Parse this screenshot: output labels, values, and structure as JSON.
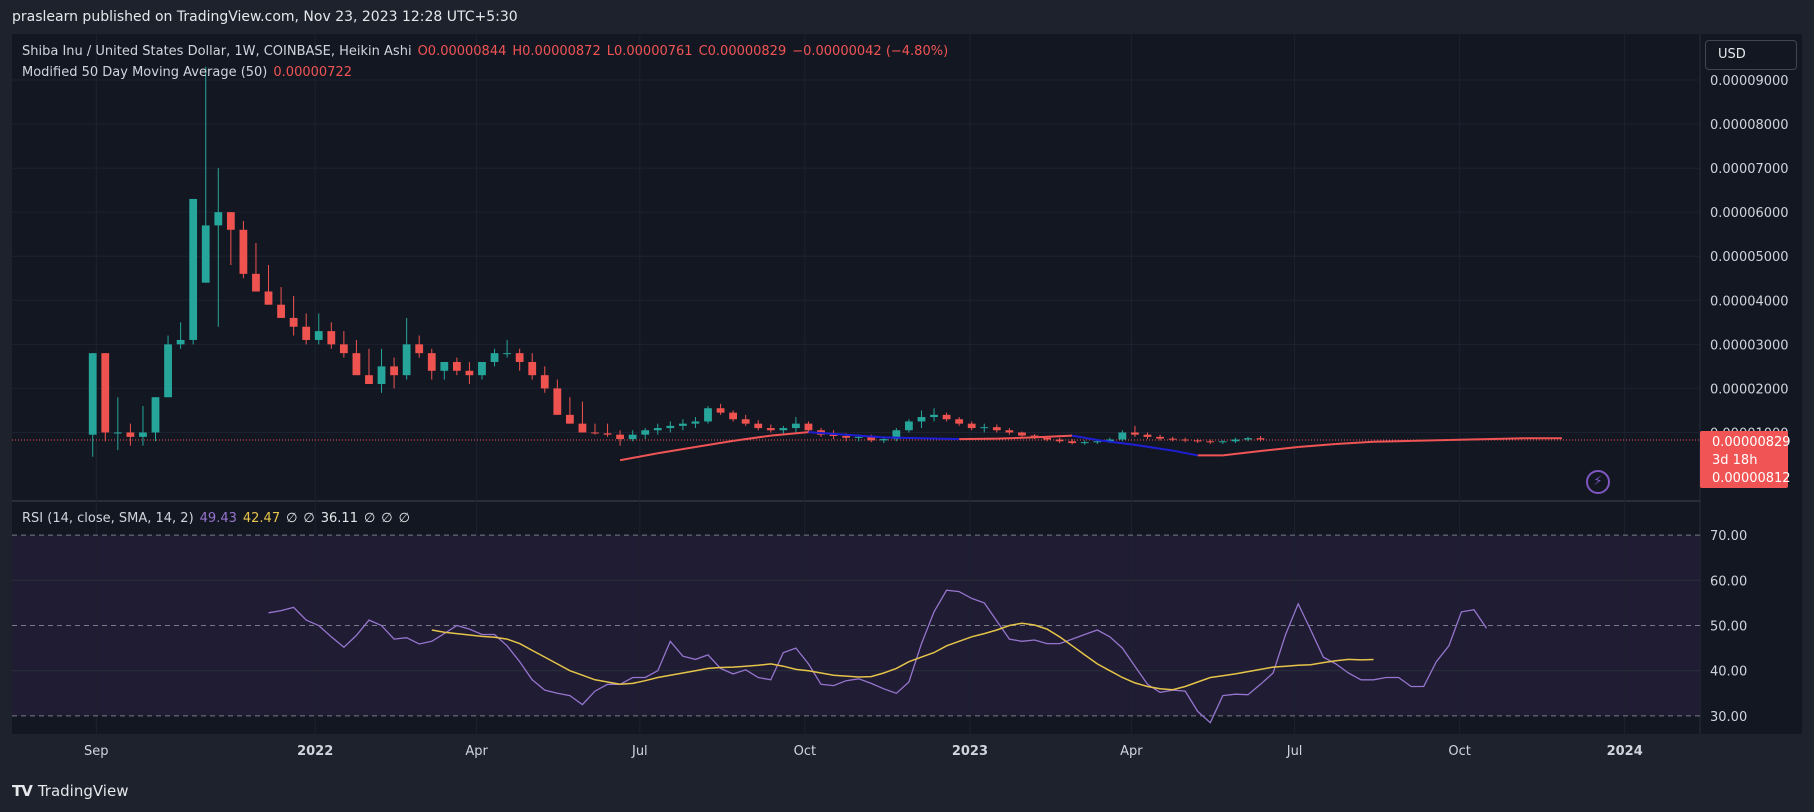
{
  "header": {
    "published_line": "praslearn published on TradingView.com, Nov 23, 2023 12:28 UTC+5:30"
  },
  "legend": {
    "symbol": "Shiba Inu / United States Dollar, 1W, COINBASE, Heikin Ashi",
    "open": "O0.00000844",
    "high": "H0.00000872",
    "low": "L0.00000761",
    "close": "C0.00000829",
    "change": "−0.00000042 (−4.80%)",
    "ma_label": "Modified 50 Day Moving Average (50)",
    "ma_value": "0.00000722",
    "rsi_label": "RSI (14, close, SMA, 14, 2)",
    "rsi_value": "49.43",
    "rsi_ma_value": "42.47",
    "empty_1": "∅",
    "empty_2": "∅",
    "rsi_extra": "36.11",
    "empty_3": "∅",
    "empty_4": "∅",
    "empty_5": "∅"
  },
  "toolbar": {
    "currency": "USD"
  },
  "icons": {
    "flash": "flash-icon",
    "logo": "tradingview-logo-icon"
  },
  "footer": {
    "logo_mark": "TV",
    "brand": "TradingView"
  },
  "colors": {
    "background": "#131722",
    "up": "#26a69a",
    "down": "#ef5350",
    "ma_down": "#f05454",
    "ma_up": "#1e1ed4",
    "rsi": "#9575cd",
    "rsi_ma": "#e6c44a",
    "price_tag": "#f05454"
  },
  "chart_data": [
    {
      "type": "candlestick",
      "title": "Shiba Inu / United States Dollar, 1W, COINBASE, Heikin Ashi",
      "ylim": [
        0,
        9e-05
      ],
      "y_ticks": [
        "0.00001000",
        "0.00002000",
        "0.00003000",
        "0.00004000",
        "0.00005000",
        "0.00006000",
        "0.00007000",
        "0.00008000",
        "0.00009000"
      ],
      "y_tick_values": [
        1e-05,
        2e-05,
        3e-05,
        4e-05,
        5e-05,
        6e-05,
        7e-05,
        8e-05,
        9e-05
      ],
      "x_ticks": [
        "Sep",
        "2022",
        "Apr",
        "Jul",
        "Oct",
        "2023",
        "Apr",
        "Jul",
        "Oct",
        "2024"
      ],
      "x_tick_dates": [
        "2021-09-01",
        "2022-01-01",
        "2022-04-01",
        "2022-07-01",
        "2022-10-01",
        "2023-01-01",
        "2023-04-01",
        "2023-07-01",
        "2023-10-01",
        "2024-01-01"
      ],
      "x_range": [
        "2021-07-16",
        "2024-02-12"
      ],
      "first_candle": "2021-08-30",
      "interval_days": 7,
      "price_line": 8.29e-06,
      "price_labels": [
        "0.00000829",
        "3d 18h",
        "0.00000812"
      ],
      "candles_ohlc_1e-5": [
        [
          0.95,
          2.8,
          0.45,
          2.8
        ],
        [
          2.8,
          2.8,
          0.8,
          1.0
        ],
        [
          1.0,
          1.8,
          0.6,
          1.0
        ],
        [
          1.0,
          1.2,
          0.7,
          0.9
        ],
        [
          0.9,
          1.6,
          0.7,
          1.0
        ],
        [
          1.0,
          1.8,
          0.8,
          1.8
        ],
        [
          1.8,
          3.2,
          1.8,
          3.0
        ],
        [
          3.0,
          3.5,
          2.9,
          3.1
        ],
        [
          3.1,
          6.3,
          3.0,
          6.3
        ],
        [
          4.4,
          9.3,
          4.4,
          5.7
        ],
        [
          5.7,
          7.0,
          3.4,
          6.0
        ],
        [
          6.0,
          6.0,
          4.8,
          5.6
        ],
        [
          5.6,
          5.8,
          4.5,
          4.6
        ],
        [
          4.6,
          5.3,
          4.3,
          4.2
        ],
        [
          4.2,
          4.8,
          3.9,
          3.9
        ],
        [
          3.9,
          4.3,
          3.6,
          3.6
        ],
        [
          3.6,
          4.1,
          3.2,
          3.4
        ],
        [
          3.4,
          3.7,
          3.0,
          3.1
        ],
        [
          3.1,
          3.7,
          3.0,
          3.3
        ],
        [
          3.3,
          3.5,
          2.9,
          3.0
        ],
        [
          3.0,
          3.3,
          2.7,
          2.8
        ],
        [
          2.8,
          3.1,
          2.4,
          2.3
        ],
        [
          2.3,
          2.9,
          2.1,
          2.1
        ],
        [
          2.1,
          2.9,
          1.9,
          2.5
        ],
        [
          2.5,
          2.7,
          2.0,
          2.3
        ],
        [
          2.3,
          3.6,
          2.2,
          3.0
        ],
        [
          3.0,
          3.2,
          2.7,
          2.8
        ],
        [
          2.8,
          2.9,
          2.2,
          2.4
        ],
        [
          2.4,
          2.6,
          2.2,
          2.6
        ],
        [
          2.6,
          2.7,
          2.3,
          2.4
        ],
        [
          2.4,
          2.6,
          2.1,
          2.3
        ],
        [
          2.3,
          2.6,
          2.2,
          2.6
        ],
        [
          2.6,
          2.9,
          2.5,
          2.8
        ],
        [
          2.8,
          3.1,
          2.7,
          2.8
        ],
        [
          2.8,
          2.9,
          2.4,
          2.6
        ],
        [
          2.6,
          2.8,
          2.2,
          2.3
        ],
        [
          2.3,
          2.5,
          1.9,
          2.0
        ],
        [
          2.0,
          2.2,
          1.5,
          1.4
        ],
        [
          1.4,
          1.8,
          1.2,
          1.2
        ],
        [
          1.2,
          1.7,
          1.0,
          1.0
        ],
        [
          1.0,
          1.2,
          0.95,
          0.98
        ],
        [
          0.98,
          1.2,
          0.9,
          0.95
        ],
        [
          0.95,
          1.05,
          0.7,
          0.85
        ],
        [
          0.85,
          1.05,
          0.8,
          0.95
        ],
        [
          0.95,
          1.1,
          0.85,
          1.05
        ],
        [
          1.05,
          1.2,
          0.95,
          1.1
        ],
        [
          1.1,
          1.25,
          1.0,
          1.15
        ],
        [
          1.15,
          1.3,
          1.05,
          1.2
        ],
        [
          1.2,
          1.35,
          1.1,
          1.25
        ],
        [
          1.25,
          1.6,
          1.2,
          1.55
        ],
        [
          1.55,
          1.65,
          1.4,
          1.45
        ],
        [
          1.45,
          1.5,
          1.25,
          1.3
        ],
        [
          1.3,
          1.4,
          1.15,
          1.2
        ],
        [
          1.2,
          1.28,
          1.05,
          1.1
        ],
        [
          1.1,
          1.18,
          1.0,
          1.05
        ],
        [
          1.05,
          1.15,
          0.95,
          1.1
        ],
        [
          1.1,
          1.35,
          1.0,
          1.2
        ],
        [
          1.2,
          1.25,
          1.0,
          1.05
        ],
        [
          1.05,
          1.1,
          0.9,
          0.95
        ],
        [
          0.95,
          1.05,
          0.85,
          0.92
        ],
        [
          0.92,
          0.98,
          0.8,
          0.88
        ],
        [
          0.88,
          0.95,
          0.8,
          0.9
        ],
        [
          0.9,
          0.95,
          0.78,
          0.82
        ],
        [
          0.82,
          0.9,
          0.76,
          0.85
        ],
        [
          0.85,
          1.1,
          0.8,
          1.05
        ],
        [
          1.05,
          1.3,
          1.0,
          1.25
        ],
        [
          1.25,
          1.5,
          1.1,
          1.35
        ],
        [
          1.35,
          1.55,
          1.25,
          1.4
        ],
        [
          1.4,
          1.45,
          1.25,
          1.3
        ],
        [
          1.3,
          1.35,
          1.15,
          1.2
        ],
        [
          1.2,
          1.25,
          1.05,
          1.1
        ],
        [
          1.1,
          1.2,
          1.0,
          1.12
        ],
        [
          1.12,
          1.18,
          1.0,
          1.05
        ],
        [
          1.05,
          1.1,
          0.95,
          1.0
        ],
        [
          1.0,
          1.02,
          0.9,
          0.93
        ],
        [
          0.93,
          0.96,
          0.85,
          0.88
        ],
        [
          0.88,
          0.9,
          0.8,
          0.84
        ],
        [
          0.84,
          0.88,
          0.76,
          0.8
        ],
        [
          0.8,
          0.85,
          0.73,
          0.76
        ],
        [
          0.76,
          0.82,
          0.72,
          0.78
        ],
        [
          0.78,
          0.84,
          0.74,
          0.8
        ],
        [
          0.8,
          0.88,
          0.76,
          0.84
        ],
        [
          0.84,
          1.05,
          0.8,
          1.0
        ],
        [
          1.0,
          1.15,
          0.9,
          0.95
        ],
        [
          0.95,
          1.0,
          0.85,
          0.9
        ],
        [
          0.9,
          0.95,
          0.82,
          0.86
        ],
        [
          0.86,
          0.9,
          0.8,
          0.84
        ],
        [
          0.84,
          0.88,
          0.78,
          0.82
        ],
        [
          0.82,
          0.86,
          0.76,
          0.8
        ],
        [
          0.8,
          0.84,
          0.74,
          0.78
        ],
        [
          0.78,
          0.82,
          0.74,
          0.8
        ],
        [
          0.8,
          0.88,
          0.76,
          0.84
        ],
        [
          0.84,
          0.9,
          0.8,
          0.87
        ],
        [
          0.87,
          0.92,
          0.8,
          0.84
        ]
      ]
    },
    {
      "type": "line",
      "title": "Modified 50 Day Moving Average (50)",
      "points": [
        [
          42,
          4.6e-06
        ],
        [
          45,
          3e-06
        ],
        [
          48,
          1.6e-06
        ],
        [
          51,
          2e-07
        ],
        [
          54,
          -1e-06
        ],
        [
          57,
          -1.8e-06
        ],
        [
          60,
          -1.2e-06
        ],
        [
          63,
          -6e-07
        ],
        [
          66,
          -4e-07
        ],
        [
          69,
          -2e-07
        ],
        [
          72,
          -3e-07
        ],
        [
          75,
          -6e-07
        ],
        [
          78,
          -1e-06
        ],
        [
          80,
          0
        ],
        [
          83,
          1.1e-06
        ],
        [
          86,
          2.4e-06
        ],
        [
          88,
          3.5e-06
        ],
        [
          90,
          3.5e-06
        ],
        [
          93,
          2.5e-06
        ],
        [
          96,
          1.6e-06
        ],
        [
          99,
          9e-07
        ],
        [
          102,
          4e-07
        ],
        [
          105,
          2e-07
        ],
        [
          108,
          0
        ],
        [
          111,
          -2e-07
        ],
        [
          114,
          -4e-07
        ],
        [
          117,
          -4e-07
        ]
      ],
      "value_scale": "price minus 0.00000829 baseline is added to price line",
      "up_segment_color": "#1e1ed4",
      "down_segment_color": "#f05454"
    },
    {
      "type": "line",
      "title": "RSI (14, close, SMA, 14, 2)",
      "ylim": [
        26,
        74
      ],
      "y_ticks": [
        "30.00",
        "40.00",
        "50.00",
        "60.00",
        "70.00"
      ],
      "y_tick_values": [
        30,
        40,
        50,
        60,
        70
      ],
      "bands": [
        30,
        50,
        70
      ],
      "series": [
        {
          "name": "RSI",
          "start_index": 14,
          "values": [
            52.8,
            53.3,
            54.0,
            51.2,
            50.0,
            47.5,
            45.2,
            47.8,
            51.2,
            50.0,
            47.0,
            47.3,
            45.9,
            46.5,
            48.2,
            50.0,
            49.2,
            48.0,
            48.0,
            45.5,
            42.0,
            38.0,
            35.7,
            35.0,
            34.5,
            32.5,
            35.5,
            37.0,
            37.0,
            38.5,
            38.5,
            40.0,
            46.5,
            43.2,
            42.5,
            43.5,
            40.5,
            39.3,
            40.2,
            38.5,
            38.0,
            44.0,
            45.0,
            41.5,
            37.0,
            36.7,
            37.8,
            38.2,
            37.2,
            36.0,
            35.0,
            37.5,
            46.0,
            53.0,
            57.8,
            57.5,
            56.0,
            55.0,
            51.0,
            47.0,
            46.5,
            46.8,
            46.0,
            46.0,
            47.0,
            48.0,
            49.0,
            47.5,
            45.0,
            41.0,
            37.0,
            35.2,
            35.7,
            35.5,
            31.0,
            28.5,
            34.5,
            34.8,
            34.7,
            37.0,
            39.5,
            48.0,
            54.8,
            49.0,
            43.0,
            41.5,
            39.5,
            38.0,
            38.0,
            38.5,
            38.5,
            36.5,
            36.5,
            42.0,
            45.5,
            53.0,
            53.5,
            49.4
          ]
        },
        {
          "name": "RSI-based MA",
          "start_index": 27,
          "values": [
            49.0,
            48.5,
            48.2,
            47.9,
            47.6,
            47.4,
            47.0,
            46.0,
            44.5,
            43.0,
            41.5,
            40.0,
            39.0,
            38.0,
            37.5,
            37.0,
            37.2,
            37.8,
            38.5,
            39.0,
            39.5,
            40.0,
            40.5,
            40.7,
            40.8,
            41.0,
            41.2,
            41.5,
            41.0,
            40.3,
            40.0,
            39.5,
            39.0,
            38.8,
            38.6,
            38.7,
            39.5,
            40.5,
            42.0,
            43.0,
            44.0,
            45.5,
            46.5,
            47.5,
            48.2,
            49.0,
            50.0,
            50.5,
            50.1,
            49.2,
            47.5,
            45.5,
            43.5,
            41.5,
            40.0,
            38.5,
            37.3,
            36.5,
            36.0,
            35.8,
            36.5,
            37.5,
            38.5,
            38.9,
            39.3,
            39.8,
            40.3,
            40.8,
            41.0,
            41.2,
            41.3,
            41.8,
            42.2,
            42.5,
            42.4,
            42.47
          ]
        }
      ],
      "last_values": [
        "49.43",
        "42.47"
      ]
    }
  ]
}
